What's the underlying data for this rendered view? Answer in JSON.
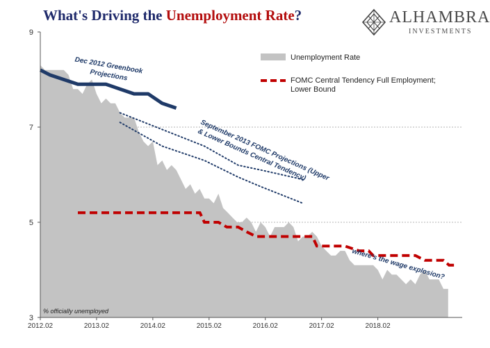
{
  "title": {
    "prefix": "What's Driving the ",
    "highlight": "Unemployment Rate",
    "suffix": "?"
  },
  "brand": {
    "name": "ALHAMBRA",
    "subtitle": "INVESTMENTS",
    "logo_icon": "diamond-lattice-logo"
  },
  "colors": {
    "area": "#c3c3c3",
    "greenbook": "#1f3a68",
    "dotted": "#1f3a68",
    "fomc": "#c00000",
    "grid": "#9a9a9a"
  },
  "chart_data": {
    "type": "area",
    "ylim": [
      3,
      9
    ],
    "yticks": [
      "3",
      "5",
      "7",
      "9"
    ],
    "xlim": [
      2012.0833,
      2019.5833
    ],
    "xticks": [
      {
        "label": "2012.02",
        "x": 2012.0833
      },
      {
        "label": "2013.02",
        "x": 2013.0833
      },
      {
        "label": "2014.02",
        "x": 2014.0833
      },
      {
        "label": "2015.02",
        "x": 2015.0833
      },
      {
        "label": "2016.02",
        "x": 2016.0833
      },
      {
        "label": "2017.02",
        "x": 2017.0833
      },
      {
        "label": "2018.02",
        "x": 2018.0833
      }
    ],
    "grid": "horizontal dotted",
    "legend_position": "top-right",
    "series": [
      {
        "name": "Unemployment Rate",
        "kind": "area",
        "points": [
          [
            2012.0833,
            8.3
          ],
          [
            2012.1667,
            8.2
          ],
          [
            2012.25,
            8.2
          ],
          [
            2012.3333,
            8.2
          ],
          [
            2012.4167,
            8.2
          ],
          [
            2012.5,
            8.2
          ],
          [
            2012.5833,
            8.1
          ],
          [
            2012.6667,
            7.8
          ],
          [
            2012.75,
            7.8
          ],
          [
            2012.8333,
            7.7
          ],
          [
            2012.9167,
            7.9
          ],
          [
            2013.0,
            8.0
          ],
          [
            2013.0833,
            7.7
          ],
          [
            2013.1667,
            7.5
          ],
          [
            2013.25,
            7.6
          ],
          [
            2013.3333,
            7.5
          ],
          [
            2013.4167,
            7.5
          ],
          [
            2013.5,
            7.3
          ],
          [
            2013.5833,
            7.2
          ],
          [
            2013.6667,
            7.2
          ],
          [
            2013.75,
            7.2
          ],
          [
            2013.8333,
            6.9
          ],
          [
            2013.9167,
            6.7
          ],
          [
            2014.0,
            6.6
          ],
          [
            2014.0833,
            6.7
          ],
          [
            2014.1667,
            6.2
          ],
          [
            2014.25,
            6.3
          ],
          [
            2014.3333,
            6.1
          ],
          [
            2014.4167,
            6.2
          ],
          [
            2014.5,
            6.1
          ],
          [
            2014.5833,
            5.9
          ],
          [
            2014.6667,
            5.7
          ],
          [
            2014.75,
            5.8
          ],
          [
            2014.8333,
            5.6
          ],
          [
            2014.9167,
            5.7
          ],
          [
            2015.0,
            5.5
          ],
          [
            2015.0833,
            5.5
          ],
          [
            2015.1667,
            5.4
          ],
          [
            2015.25,
            5.6
          ],
          [
            2015.3333,
            5.3
          ],
          [
            2015.4167,
            5.2
          ],
          [
            2015.5,
            5.1
          ],
          [
            2015.5833,
            5.0
          ],
          [
            2015.6667,
            5.0
          ],
          [
            2015.75,
            5.1
          ],
          [
            2015.8333,
            5.0
          ],
          [
            2015.9167,
            4.8
          ],
          [
            2016.0,
            5.0
          ],
          [
            2016.0833,
            4.9
          ],
          [
            2016.1667,
            4.7
          ],
          [
            2016.25,
            4.9
          ],
          [
            2016.3333,
            4.9
          ],
          [
            2016.4167,
            4.9
          ],
          [
            2016.5,
            5.0
          ],
          [
            2016.5833,
            4.9
          ],
          [
            2016.6667,
            4.6
          ],
          [
            2016.75,
            4.7
          ],
          [
            2016.8333,
            4.7
          ],
          [
            2016.9167,
            4.8
          ],
          [
            2017.0,
            4.7
          ],
          [
            2017.0833,
            4.5
          ],
          [
            2017.1667,
            4.4
          ],
          [
            2017.25,
            4.3
          ],
          [
            2017.3333,
            4.3
          ],
          [
            2017.4167,
            4.4
          ],
          [
            2017.5,
            4.4
          ],
          [
            2017.5833,
            4.2
          ],
          [
            2017.6667,
            4.1
          ],
          [
            2017.75,
            4.1
          ],
          [
            2017.8333,
            4.1
          ],
          [
            2017.9167,
            4.1
          ],
          [
            2018.0,
            4.1
          ],
          [
            2018.0833,
            4.0
          ],
          [
            2018.1667,
            3.8
          ],
          [
            2018.25,
            4.0
          ],
          [
            2018.3333,
            3.9
          ],
          [
            2018.4167,
            3.9
          ],
          [
            2018.5,
            3.8
          ],
          [
            2018.5833,
            3.7
          ],
          [
            2018.6667,
            3.8
          ],
          [
            2018.75,
            3.7
          ],
          [
            2018.8333,
            3.9
          ],
          [
            2018.9167,
            4.0
          ],
          [
            2019.0,
            3.8
          ],
          [
            2019.0833,
            3.8
          ],
          [
            2019.1667,
            3.8
          ],
          [
            2019.25,
            3.6
          ],
          [
            2019.3333,
            3.6
          ]
        ]
      },
      {
        "name": "FOMC Central Tendency Full Employment; Lower Bound",
        "kind": "dashed-step",
        "points": [
          [
            2012.75,
            5.2
          ],
          [
            2013.0,
            5.2
          ],
          [
            2013.25,
            5.2
          ],
          [
            2013.5,
            5.2
          ],
          [
            2013.75,
            5.2
          ],
          [
            2014.0,
            5.2
          ],
          [
            2014.25,
            5.2
          ],
          [
            2014.5,
            5.2
          ],
          [
            2014.75,
            5.2
          ],
          [
            2014.92,
            5.2
          ],
          [
            2015.0,
            5.0
          ],
          [
            2015.25,
            5.0
          ],
          [
            2015.4,
            4.9
          ],
          [
            2015.6,
            4.9
          ],
          [
            2015.75,
            4.8
          ],
          [
            2015.92,
            4.7
          ],
          [
            2016.25,
            4.7
          ],
          [
            2016.5,
            4.7
          ],
          [
            2016.75,
            4.7
          ],
          [
            2016.92,
            4.7
          ],
          [
            2017.0,
            4.5
          ],
          [
            2017.25,
            4.5
          ],
          [
            2017.5,
            4.5
          ],
          [
            2017.75,
            4.4
          ],
          [
            2017.92,
            4.4
          ],
          [
            2018.0,
            4.3
          ],
          [
            2018.25,
            4.3
          ],
          [
            2018.5,
            4.3
          ],
          [
            2018.75,
            4.3
          ],
          [
            2018.92,
            4.2
          ],
          [
            2019.25,
            4.2
          ],
          [
            2019.35,
            4.1
          ],
          [
            2019.5,
            4.1
          ]
        ]
      },
      {
        "name": "Dec 2012 Greenbook Projections",
        "kind": "line",
        "points": [
          [
            2012.0833,
            8.2
          ],
          [
            2012.25,
            8.1
          ],
          [
            2012.5,
            8.0
          ],
          [
            2012.75,
            7.9
          ],
          [
            2013.0,
            7.9
          ],
          [
            2013.25,
            7.9
          ],
          [
            2013.5,
            7.8
          ],
          [
            2013.75,
            7.7
          ],
          [
            2014.0,
            7.7
          ],
          [
            2014.25,
            7.5
          ],
          [
            2014.5,
            7.4
          ]
        ]
      },
      {
        "name": "September 2013 FOMC Projections (Upper & Lower Bounds Central Tendency)",
        "kind": "dotted",
        "upper": [
          [
            2013.5,
            7.3
          ],
          [
            2014.25,
            6.95
          ],
          [
            2015.0,
            6.6
          ],
          [
            2015.6,
            6.2
          ],
          [
            2016.0,
            6.1
          ],
          [
            2016.75,
            5.9
          ]
        ],
        "lower": [
          [
            2013.5,
            7.1
          ],
          [
            2014.25,
            6.6
          ],
          [
            2015.0,
            6.3
          ],
          [
            2015.6,
            5.95
          ],
          [
            2016.0,
            5.75
          ],
          [
            2016.75,
            5.4
          ]
        ]
      }
    ]
  },
  "legend": {
    "unemployment": "Unemployment Rate",
    "fomc_line1": "FOMC Central Tendency Full Employment;",
    "fomc_line2": "Lower Bound"
  },
  "annotations": {
    "greenbook_line1": "Dec 2012 Greenbook",
    "greenbook_line2": "Projections",
    "sept_line1": "September 2013 FOMC Projections (Upper",
    "sept_line2": "& Lower Bounds Central Tendency)",
    "wage": "where's the wage explosion?",
    "footnote": "% officially unemployed"
  }
}
